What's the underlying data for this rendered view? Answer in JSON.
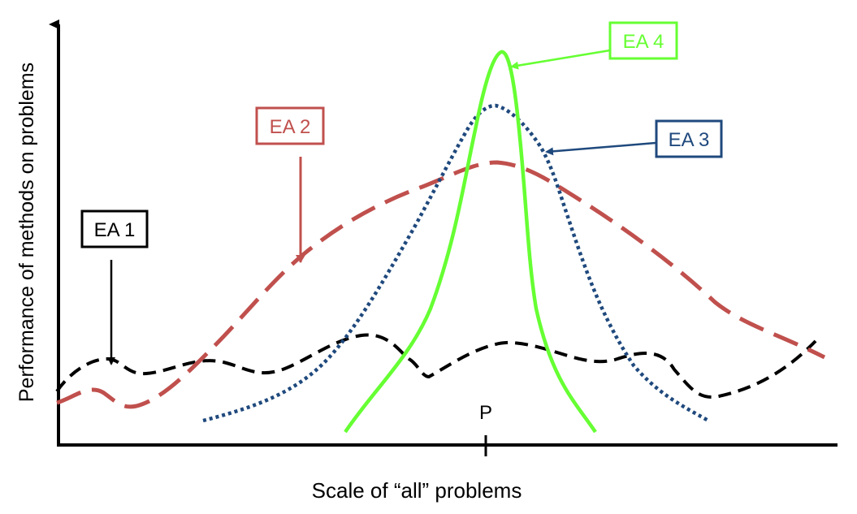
{
  "axes": {
    "y_label": "Performance of methods on problems",
    "x_label": "Scale of “all” problems",
    "tick_label": "P"
  },
  "curves": [
    {
      "id": "ea1",
      "label": "EA 1",
      "color": "#000000",
      "style": "dashed",
      "description": "nearly flat, uniformly low performance"
    },
    {
      "id": "ea2",
      "label": "EA 2",
      "color": "#c0504d",
      "style": "long-dashed",
      "description": "broad moderate peak at P"
    },
    {
      "id": "ea3",
      "label": "EA 3",
      "color": "#1f497d",
      "style": "dotted",
      "description": "narrower, higher peak at P"
    },
    {
      "id": "ea4",
      "label": "EA 4",
      "color": "#66ff33",
      "style": "solid",
      "description": "very narrow, highest peak at P"
    }
  ]
}
